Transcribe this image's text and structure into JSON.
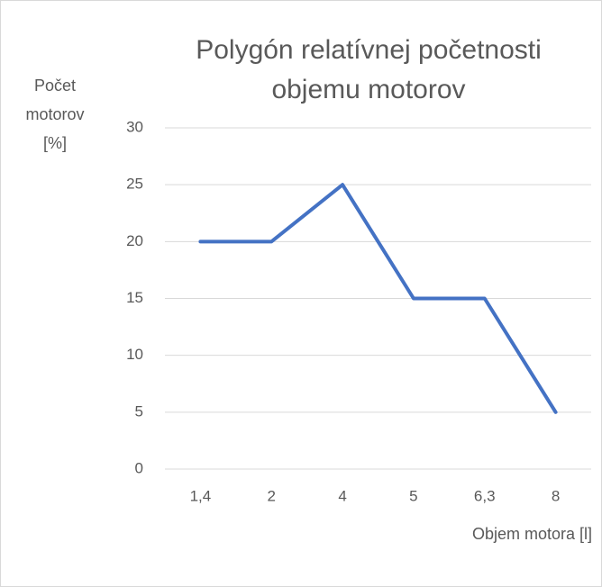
{
  "chart_data": {
    "type": "line",
    "title": "Polygón relatívnej početnosti objemu motorov",
    "y_label": "Počet motorov [%]",
    "x_label": "Objem motora [l]",
    "categories": [
      "1,4",
      "2",
      "4",
      "5",
      "6,3",
      "8"
    ],
    "series": [
      {
        "name": "Počet motorov",
        "color": "#4472c4",
        "values": [
          20,
          20,
          25,
          15,
          15,
          5
        ]
      }
    ],
    "ylim": [
      0,
      30
    ],
    "yticks": [
      0,
      5,
      10,
      15,
      20,
      25,
      30
    ],
    "grid": true
  }
}
